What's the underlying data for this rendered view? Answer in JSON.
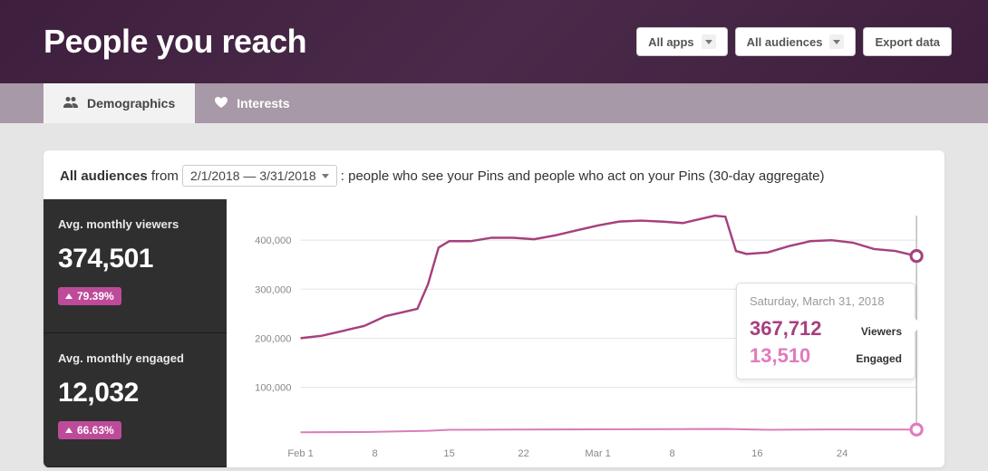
{
  "header": {
    "title": "People you reach",
    "buttons": {
      "apps": "All apps",
      "audiences": "All audiences",
      "export": "Export data"
    }
  },
  "tabs": {
    "demographics": "Demographics",
    "interests": "Interests"
  },
  "filter": {
    "audiences_label": "All audiences",
    "from_label": "from",
    "date_range": "2/1/2018 — 3/31/2018",
    "description": ": people who see your Pins and people who act on your Pins (30-day aggregate)"
  },
  "stats": {
    "viewers": {
      "label": "Avg. monthly viewers",
      "value": "374,501",
      "delta": "79.39%"
    },
    "engaged": {
      "label": "Avg. monthly engaged",
      "value": "12,032",
      "delta": "66.63%"
    }
  },
  "tooltip": {
    "date": "Saturday, March 31, 2018",
    "viewers_value": "367,712",
    "viewers_label": "Viewers",
    "engaged_value": "13,510",
    "engaged_label": "Engaged"
  },
  "chart": {
    "type": "line",
    "background_color": "#ffffff",
    "grid_color": "#e5e5e5",
    "axis_label_color": "#888888",
    "axis_fontsize": 11,
    "ylim": [
      0,
      450000
    ],
    "yticks": [
      100000,
      200000,
      300000,
      400000
    ],
    "ytick_labels": [
      "100,000",
      "200,000",
      "300,000",
      "400,000"
    ],
    "xtick_labels": [
      "Feb 1",
      "8",
      "15",
      "22",
      "Mar 1",
      "8",
      "16",
      "24"
    ],
    "xtick_positions": [
      0,
      7,
      14,
      21,
      28,
      35,
      43,
      51
    ],
    "x_range": [
      0,
      58
    ],
    "series": {
      "viewers": {
        "color": "#a6407d",
        "stroke_width": 2.4,
        "points": [
          [
            0,
            200000
          ],
          [
            2,
            205000
          ],
          [
            4,
            215000
          ],
          [
            6,
            225000
          ],
          [
            8,
            245000
          ],
          [
            10,
            255000
          ],
          [
            11,
            260000
          ],
          [
            12,
            310000
          ],
          [
            13,
            385000
          ],
          [
            14,
            398000
          ],
          [
            16,
            398000
          ],
          [
            18,
            405000
          ],
          [
            20,
            405000
          ],
          [
            22,
            402000
          ],
          [
            24,
            410000
          ],
          [
            26,
            420000
          ],
          [
            28,
            430000
          ],
          [
            30,
            438000
          ],
          [
            32,
            440000
          ],
          [
            34,
            438000
          ],
          [
            36,
            435000
          ],
          [
            38,
            445000
          ],
          [
            39,
            450000
          ],
          [
            40,
            448000
          ],
          [
            41,
            378000
          ],
          [
            42,
            372000
          ],
          [
            44,
            375000
          ],
          [
            46,
            388000
          ],
          [
            48,
            398000
          ],
          [
            50,
            400000
          ],
          [
            52,
            395000
          ],
          [
            54,
            382000
          ],
          [
            56,
            378000
          ],
          [
            58,
            367712
          ]
        ]
      },
      "engaged": {
        "color": "#d97fb8",
        "stroke_width": 2,
        "points": [
          [
            0,
            8000
          ],
          [
            6,
            8500
          ],
          [
            12,
            11000
          ],
          [
            14,
            13000
          ],
          [
            20,
            13500
          ],
          [
            28,
            14000
          ],
          [
            36,
            14500
          ],
          [
            40,
            14800
          ],
          [
            44,
            13000
          ],
          [
            50,
            13800
          ],
          [
            58,
            13510
          ]
        ]
      }
    },
    "hover_x": 58,
    "marker_viewers_color": "#a6407d",
    "marker_engaged_color": "#e07bbd"
  },
  "colors": {
    "header_bg": "#3a1e3a",
    "sidebar_bg": "#2f2f2f",
    "badge_bg": "#bd4b9a"
  }
}
